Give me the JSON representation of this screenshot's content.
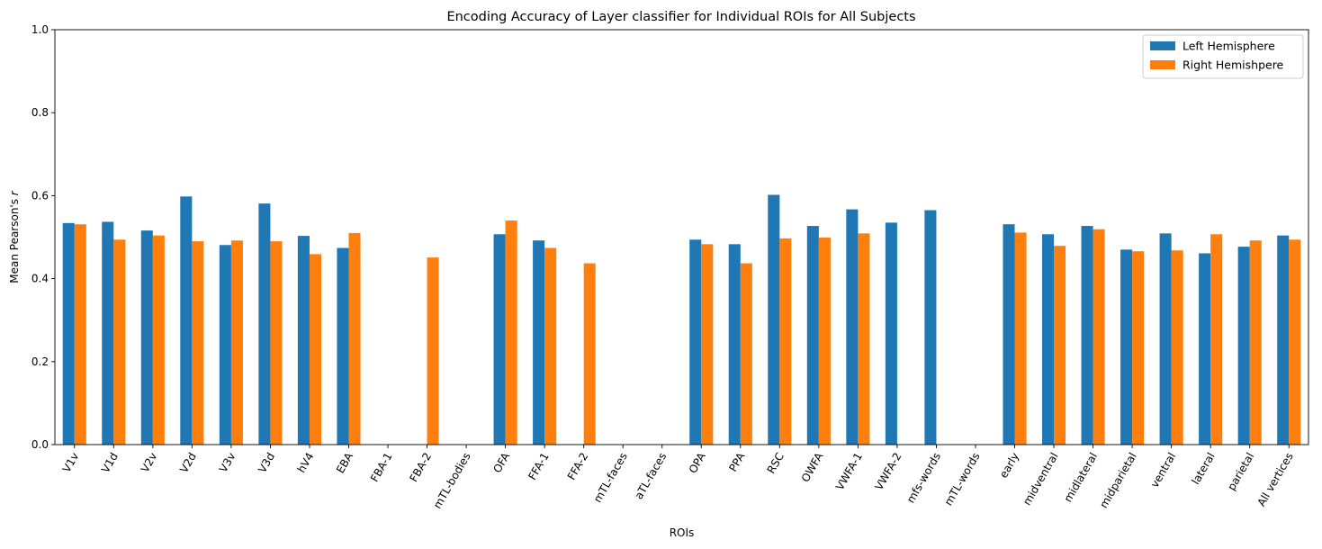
{
  "chart_data": {
    "type": "bar",
    "title": "Encoding Accuracy of Layer classifier for Individual ROIs for All Subjects",
    "xlabel": "ROIs",
    "ylabel_prefix": "Mean Pearson's ",
    "ylabel_var": "r",
    "ylim": [
      0,
      1
    ],
    "yticks": [
      "0.0",
      "0.2",
      "0.4",
      "0.6",
      "0.8",
      "1.0"
    ],
    "grid": false,
    "legend_position": "top-right",
    "categories": [
      "V1v",
      "V1d",
      "V2v",
      "V2d",
      "V3v",
      "V3d",
      "hV4",
      "EBA",
      "FBA-1",
      "FBA-2",
      "mTL-bodies",
      "OFA",
      "FFA-1",
      "FFA-2",
      "mTL-faces",
      "aTL-faces",
      "OPA",
      "PPA",
      "RSC",
      "OWFA",
      "VWFA-1",
      "VWFA-2",
      "mfs-words",
      "mTL-words",
      "early",
      "midventral",
      "midlateral",
      "midparietal",
      "ventral",
      "lateral",
      "parietal",
      "All vertices"
    ],
    "series": [
      {
        "name": "Left Hemisphere",
        "color": "#1f77b4",
        "values": [
          0.534,
          0.537,
          0.516,
          0.598,
          0.481,
          0.581,
          0.503,
          0.474,
          null,
          null,
          null,
          0.507,
          0.492,
          null,
          null,
          null,
          0.494,
          0.483,
          0.602,
          0.527,
          0.567,
          0.535,
          0.565,
          null,
          0.531,
          0.507,
          0.527,
          0.47,
          0.509,
          0.461,
          0.477,
          0.504
        ]
      },
      {
        "name": "Right Hemishpere",
        "color": "#ff7f0e",
        "values": [
          0.531,
          0.494,
          0.504,
          0.49,
          0.492,
          0.49,
          0.459,
          0.51,
          null,
          0.451,
          null,
          0.54,
          0.474,
          0.437,
          null,
          null,
          0.483,
          0.437,
          0.497,
          0.499,
          0.509,
          null,
          null,
          null,
          0.511,
          0.479,
          0.519,
          0.466,
          0.468,
          0.507,
          0.492,
          0.494
        ]
      }
    ]
  }
}
